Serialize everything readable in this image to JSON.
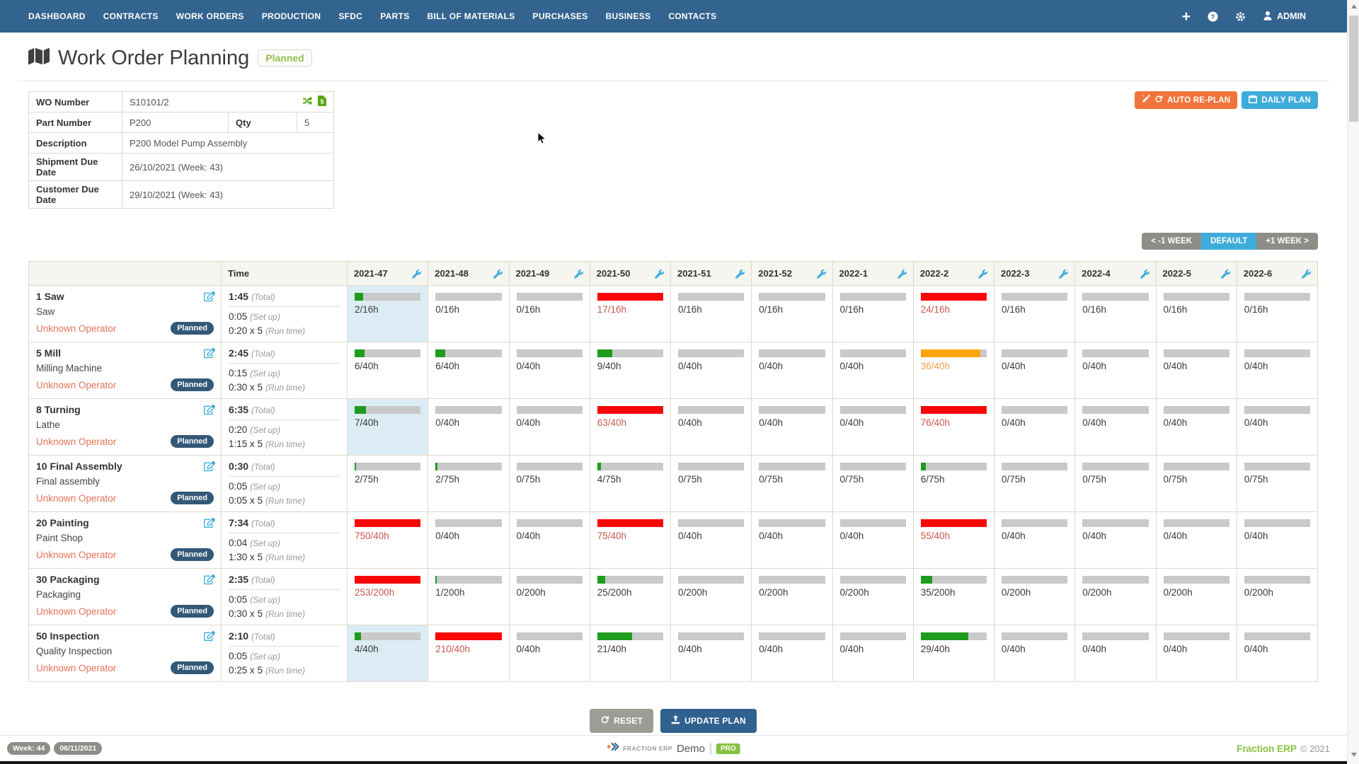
{
  "nav": {
    "items": [
      "DASHBOARD",
      "CONTRACTS",
      "WORK ORDERS",
      "PRODUCTION",
      "SFDC",
      "PARTS",
      "BILL OF MATERIALS",
      "PURCHASES",
      "BUSINESS",
      "CONTACTS"
    ],
    "admin_label": "ADMIN"
  },
  "header": {
    "title": "Work Order Planning",
    "status_badge": "Planned"
  },
  "wo": {
    "wo_number_label": "WO Number",
    "wo_number": "S10101/2",
    "part_number_label": "Part Number",
    "part_number": "P200",
    "qty_label": "Qty",
    "qty": "5",
    "description_label": "Description",
    "description": "P200 Model Pump Assembly",
    "shipment_label": "Shipment Due Date",
    "shipment_value": "26/10/2021 (Week: 43)",
    "customer_label": "Customer Due Date",
    "customer_value": "29/10/2021 (Week: 43)"
  },
  "toolbar": {
    "auto_replan": "AUTO RE-PLAN",
    "daily_plan": "DAILY PLAN",
    "week_prev": "< -1 WEEK",
    "week_default": "DEFAULT",
    "week_next": "+1 WEEK >"
  },
  "plan": {
    "time_header": "Time",
    "status_label": "Planned",
    "labels": {
      "total": "(Total)",
      "setup": "(Set up)",
      "runtime": "(Run time)"
    },
    "weeks": [
      "2021-47",
      "2021-48",
      "2021-49",
      "2021-50",
      "2021-51",
      "2021-52",
      "2022-1",
      "2022-2",
      "2022-3",
      "2022-4",
      "2022-5",
      "2022-6"
    ],
    "rows": [
      {
        "name": "1 Saw",
        "machine": "Saw",
        "operator": "Unknown Operator",
        "total": "1:45",
        "setup": "0:05",
        "runtime": "0:20 x 5",
        "capacity": 16,
        "loads": [
          2,
          0,
          0,
          17,
          0,
          0,
          0,
          24,
          0,
          0,
          0,
          0
        ],
        "highlight": [
          0
        ]
      },
      {
        "name": "5 Mill",
        "machine": "Milling Machine",
        "operator": "Unknown Operator",
        "total": "2:45",
        "setup": "0:15",
        "runtime": "0:30 x 5",
        "capacity": 40,
        "loads": [
          6,
          6,
          0,
          9,
          0,
          0,
          0,
          36,
          0,
          0,
          0,
          0
        ],
        "highlight": []
      },
      {
        "name": "8 Turning",
        "machine": "Lathe",
        "operator": "Unknown Operator",
        "total": "6:35",
        "setup": "0:20",
        "runtime": "1:15 x 5",
        "capacity": 40,
        "loads": [
          7,
          0,
          0,
          63,
          0,
          0,
          0,
          76,
          0,
          0,
          0,
          0
        ],
        "highlight": [
          0
        ]
      },
      {
        "name": "10 Final Assembly",
        "machine": "Final assembly",
        "operator": "Unknown Operator",
        "total": "0:30",
        "setup": "0:05",
        "runtime": "0:05 x 5",
        "capacity": 75,
        "loads": [
          2,
          2,
          0,
          4,
          0,
          0,
          0,
          6,
          0,
          0,
          0,
          0
        ],
        "highlight": []
      },
      {
        "name": "20 Painting",
        "machine": "Paint Shop",
        "operator": "Unknown Operator",
        "total": "7:34",
        "setup": "0:04",
        "runtime": "1:30 x 5",
        "capacity": 40,
        "loads": [
          750,
          0,
          0,
          75,
          0,
          0,
          0,
          55,
          0,
          0,
          0,
          0
        ],
        "highlight": []
      },
      {
        "name": "30 Packaging",
        "machine": "Packaging",
        "operator": "Unknown Operator",
        "total": "2:35",
        "setup": "0:05",
        "runtime": "0:30 x 5",
        "capacity": 200,
        "loads": [
          253,
          1,
          0,
          25,
          0,
          0,
          0,
          35,
          0,
          0,
          0,
          0
        ],
        "highlight": []
      },
      {
        "name": "50 Inspection",
        "machine": "Quality Inspection",
        "operator": "Unknown Operator",
        "total": "2:10",
        "setup": "0:05",
        "runtime": "0:25 x 5",
        "capacity": 40,
        "loads": [
          4,
          210,
          0,
          21,
          0,
          0,
          0,
          29,
          0,
          0,
          0,
          0
        ],
        "highlight": [
          0
        ]
      }
    ]
  },
  "actions": {
    "reset": "RESET",
    "update_plan": "UPDATE PLAN"
  },
  "footer": {
    "week_badge": "Week: 44",
    "date_badge": "06/11/2021",
    "brand_small": "FRACTION ERP",
    "brand_demo": "Demo",
    "separator": "|",
    "brand_pro": "PRO",
    "brand_right": "Fraction ERP",
    "copyright": "© 2021"
  },
  "icons": {
    "title": "map-icon",
    "wo_number": [
      "shuffle-icon",
      "file-invoice-dollar-icon"
    ],
    "auto_replan": [
      "wand-icon",
      "refresh-icon"
    ],
    "daily_plan": "calendar-icon",
    "week_header": "wrench-icon",
    "operation_row": "edit-icon",
    "reset": "refresh-icon",
    "update_plan": "upload-icon",
    "nav_right": [
      "plus-icon",
      "help-icon",
      "gear-icon",
      "user-icon"
    ]
  },
  "colors": {
    "nav_blue": "#33638f",
    "accent_blue": "#3eacdb",
    "accent_orange": "#f0743c",
    "bar_ok": "#1e9c1e",
    "bar_over": "#f90606",
    "bar_warn": "#ffa40c",
    "status_badge_navy": "#335878",
    "operator_link": "#e4725a",
    "brand_green": "#85c141",
    "highlight_cell": "#dbecf4"
  }
}
